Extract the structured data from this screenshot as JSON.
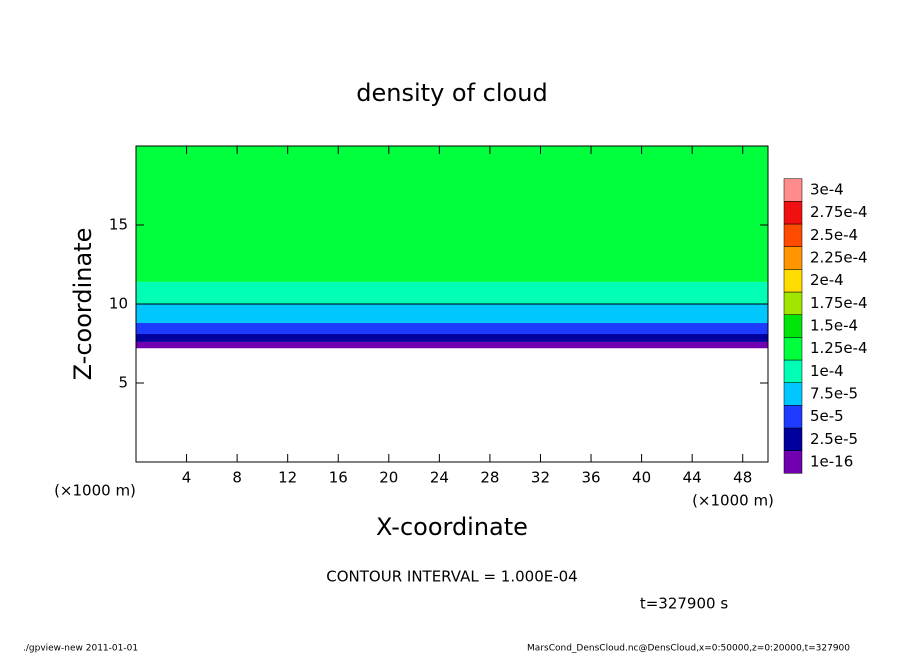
{
  "chart_data": {
    "type": "contour",
    "title": "density of cloud",
    "xlabel": "X-coordinate",
    "ylabel": "Z-coordinate",
    "x_unit_left": "(×1000 m)",
    "x_unit_right": "(×1000 m)",
    "xlim": [
      0,
      50
    ],
    "ylim": [
      0,
      20
    ],
    "xticks": [
      4,
      8,
      12,
      16,
      20,
      24,
      28,
      32,
      36,
      40,
      44,
      48
    ],
    "yticks": [
      5,
      10,
      15
    ],
    "ybins": [
      7.2,
      7.6,
      8.1,
      8.8,
      10.0,
      11.4,
      20
    ],
    "values": [
      1.2e-05,
      3.7e-05,
      6.2e-05,
      8.8e-05,
      0.000112,
      0.00014
    ],
    "contour_line_color": "#000000",
    "levels": [
      {
        "value": 1e-16,
        "label": "1e-16"
      },
      {
        "value": 2.5e-05,
        "label": "2.5e-5"
      },
      {
        "value": 5e-05,
        "label": "5e-5"
      },
      {
        "value": 7.5e-05,
        "label": "7.5e-5"
      },
      {
        "value": 0.0001,
        "label": "1e-4"
      },
      {
        "value": 0.000125,
        "label": "1.25e-4"
      },
      {
        "value": 0.00015,
        "label": "1.5e-4"
      },
      {
        "value": 0.000175,
        "label": "1.75e-4"
      },
      {
        "value": 0.0002,
        "label": "2e-4"
      },
      {
        "value": 0.000225,
        "label": "2.25e-4"
      },
      {
        "value": 0.00025,
        "label": "2.5e-4"
      },
      {
        "value": 0.000275,
        "label": "2.75e-4"
      },
      {
        "value": 0.0003,
        "label": "3e-4"
      }
    ],
    "level_colors": [
      "#7000b0",
      "#00009c",
      "#1e3cff",
      "#00c8ff",
      "#00ffb4",
      "#00ff3c",
      "#00e60a",
      "#a0e600",
      "#ffdc00",
      "#ff9600",
      "#ff4b00",
      "#f01010",
      "#ff8c8c"
    ],
    "contour_interval_text": "CONTOUR INTERVAL = 1.000E-04",
    "time_text": "t=327900 s",
    "footer_left": "./gpview-new   2011-01-01",
    "footer_right": "MarsCond_DensCloud.nc@DensCloud,x=0:50000,z=0:20000,t=327900"
  }
}
